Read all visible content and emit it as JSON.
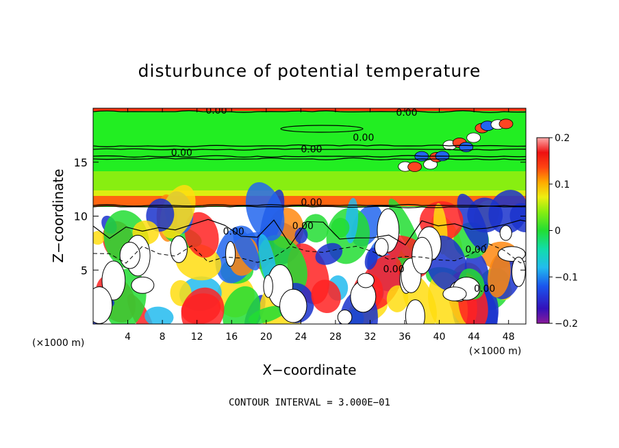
{
  "chart_data": {
    "type": "heatmap",
    "title": "disturbunce of potential temperature",
    "xlabel": "X−coordinate",
    "ylabel": "Z−coordinate",
    "x_unit": "(×1000 m)",
    "x_unit_right": "(×1000 m)",
    "xlim": [
      0,
      50
    ],
    "ylim": [
      0,
      20
    ],
    "x_ticks": [
      4,
      8,
      12,
      16,
      20,
      24,
      28,
      32,
      36,
      40,
      44,
      48
    ],
    "y_ticks": [
      5,
      10,
      15
    ],
    "colorbar": {
      "min": -0.2,
      "max": 0.2,
      "ticks": [
        0.2,
        0.1,
        0,
        -0.1,
        -0.2
      ],
      "tick_labels": [
        "0.2",
        "0.1",
        "0",
        "−0.1",
        "−0.2"
      ]
    },
    "contour_labels": [
      {
        "text": "0.00",
        "x": 13.0,
        "z": 19.5
      },
      {
        "text": "0.00",
        "x": 35.0,
        "z": 19.3
      },
      {
        "text": "0.00",
        "x": 30.0,
        "z": 17.0
      },
      {
        "text": "0.00",
        "x": 9.0,
        "z": 15.6
      },
      {
        "text": "0.00",
        "x": 24.0,
        "z": 15.9
      },
      {
        "text": "0.00",
        "x": 24.0,
        "z": 11.0
      },
      {
        "text": "0.00",
        "x": 23.0,
        "z": 8.8
      },
      {
        "text": "0.00",
        "x": 15.0,
        "z": 8.3
      },
      {
        "text": "0.00",
        "x": 33.5,
        "z": 4.8
      },
      {
        "text": "0.00",
        "x": 43.0,
        "z": 6.6
      },
      {
        "text": "0.00",
        "x": 44.0,
        "z": 3.0
      }
    ],
    "annotation": "CONTOUR INTERVAL =  3.000E−01",
    "grid": false,
    "legend": "colorbar-right"
  },
  "colors": {
    "upper_background": "#22ee22",
    "tropopause_band": "#ff5500",
    "lower_background": "#ffffff",
    "warm_anomaly": "#ff1a1a",
    "cold_anomaly": "#1a33cc",
    "contour_line": "#000000"
  }
}
